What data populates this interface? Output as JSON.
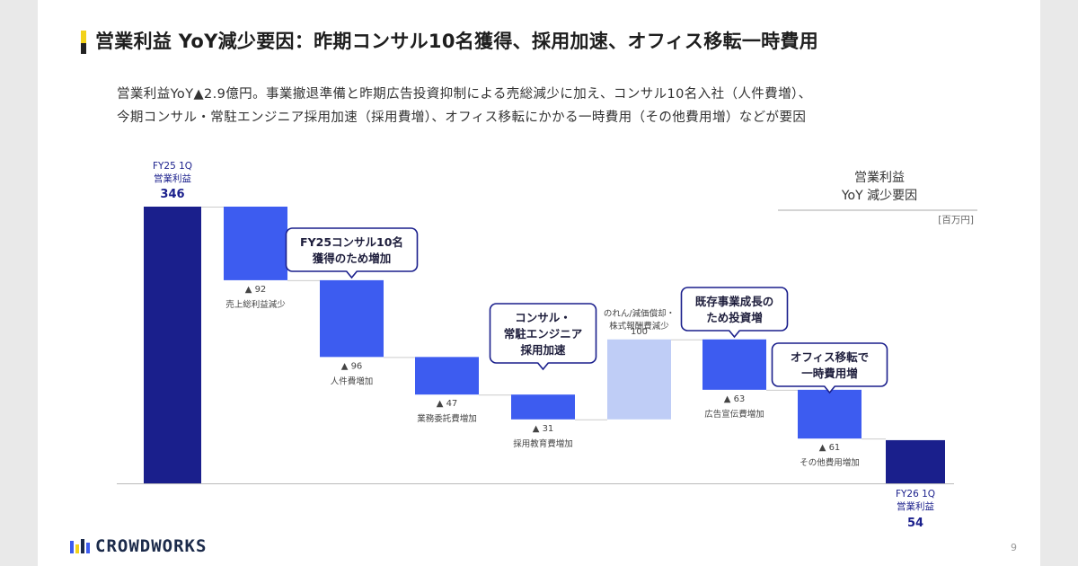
{
  "title": "営業利益 YoY減少要因：昨期コンサル10名獲得、採用加速、オフィス移転一時費用",
  "description": [
    "営業利益YoY▲2.9億円。事業撤退準備と昨期広告投資抑制による売総減少に加え、コンサル10名入社（人件費増）、",
    "今期コンサル・常駐エンジニア採用加速（採用費増）、オフィス移転にかかる一時費用（その他費用増）などが要因"
  ],
  "legend": {
    "title_line1": "営業利益",
    "title_line2": "YoY 減少要因",
    "unit": "[百万円]"
  },
  "colors": {
    "dark": "#1a1f8c",
    "mid": "#3d5cf0",
    "light": "#bfcdf6",
    "callout_border": "#1a1f8c"
  },
  "chart_data": {
    "type": "waterfall",
    "title": "営業利益 YoY 減少要因",
    "unit": "百万円",
    "start": {
      "label_line1": "FY25 1Q",
      "label_line2": "営業利益",
      "value": 346
    },
    "end": {
      "label_line1": "FY26 1Q",
      "label_line2": "営業利益",
      "value": 54
    },
    "steps": [
      {
        "label": "売上総利益減少",
        "value": -92,
        "value_text": "▲ 92",
        "kind": "decrease"
      },
      {
        "label": "人件費増加",
        "value": -96,
        "value_text": "▲ 96",
        "kind": "decrease"
      },
      {
        "label": "業務委託費増加",
        "value": -47,
        "value_text": "▲ 47",
        "kind": "decrease"
      },
      {
        "label": "採用教育費増加",
        "value": -31,
        "value_text": "▲ 31",
        "kind": "decrease"
      },
      {
        "label_line1": "のれん/減価償却・",
        "label_line2": "株式報酬費減少",
        "value": 100,
        "value_text": "100",
        "kind": "increase"
      },
      {
        "label": "広告宣伝費増加",
        "value": -63,
        "value_text": "▲ 63",
        "kind": "decrease"
      },
      {
        "label": "その他費用増加",
        "value": -61,
        "value_text": "▲ 61",
        "kind": "decrease"
      }
    ],
    "callouts": [
      {
        "step": 1,
        "lines": [
          "FY25コンサル10名",
          "獲得のため増加"
        ]
      },
      {
        "step": 3,
        "lines": [
          "コンサル・",
          "常駐エンジニア",
          "採用加速"
        ]
      },
      {
        "step": 5,
        "lines": [
          "既存事業成長の",
          "ため投資増"
        ]
      },
      {
        "step": 6,
        "lines": [
          "オフィス移転で",
          "一時費用増"
        ]
      }
    ]
  },
  "footer": {
    "logo_text": "CROWDWORKS",
    "page_number": "9"
  }
}
